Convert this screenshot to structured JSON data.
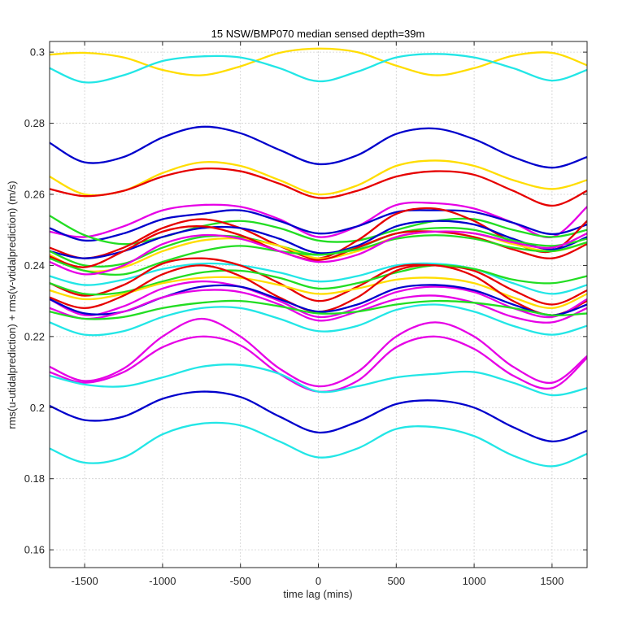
{
  "chart_data": {
    "type": "line",
    "title": "15 NSW/BMP070 median sensed depth=39m",
    "xlabel": "time lag (mins)",
    "ylabel": "rms(u-utidalprediction) + rms(v-vtidalprediction) (m/s)",
    "xlim": [
      -1725,
      1725
    ],
    "ylim": [
      0.155,
      0.303
    ],
    "xticks": [
      -1500,
      -1000,
      -500,
      0,
      500,
      1000,
      1500
    ],
    "xtick_labels": [
      "-1500",
      "-1000",
      "-500",
      "0",
      "500",
      "1000",
      "1500"
    ],
    "yticks": [
      0.16,
      0.18,
      0.2,
      0.22,
      0.24,
      0.26,
      0.28,
      0.3
    ],
    "ytick_labels": [
      "0.16",
      "0.18",
      "0.2",
      "0.22",
      "0.24",
      "0.26",
      "0.28",
      "0.3"
    ],
    "grid": true,
    "colors": {
      "blue": "#0000cc",
      "cyan": "#22e6e6",
      "yellow": "#ffdd00",
      "red": "#e60000",
      "green": "#22dd22",
      "magenta": "#e600e6"
    },
    "x": [
      -1725,
      -1500,
      -1250,
      -1000,
      -750,
      -500,
      -250,
      0,
      250,
      500,
      750,
      1000,
      1250,
      1500,
      1725
    ],
    "series": [
      {
        "name": "yellow-top",
        "color": "yellow",
        "values": [
          0.2993,
          0.2998,
          0.2985,
          0.295,
          0.2935,
          0.296,
          0.2998,
          0.301,
          0.3,
          0.2962,
          0.2935,
          0.2955,
          0.299,
          0.2998,
          0.2963
        ]
      },
      {
        "name": "cyan-top",
        "color": "cyan",
        "values": [
          0.2955,
          0.2915,
          0.2935,
          0.2975,
          0.2988,
          0.2985,
          0.2955,
          0.2918,
          0.2945,
          0.2985,
          0.2995,
          0.2985,
          0.2955,
          0.292,
          0.295
        ]
      },
      {
        "name": "blue-high",
        "color": "blue",
        "values": [
          0.2745,
          0.269,
          0.2705,
          0.276,
          0.279,
          0.2772,
          0.2725,
          0.2685,
          0.271,
          0.277,
          0.2785,
          0.2755,
          0.2705,
          0.2675,
          0.2705
        ]
      },
      {
        "name": "yellow-high",
        "color": "yellow",
        "values": [
          0.265,
          0.26,
          0.261,
          0.266,
          0.269,
          0.268,
          0.264,
          0.26,
          0.2625,
          0.268,
          0.2695,
          0.268,
          0.264,
          0.2615,
          0.264
        ]
      },
      {
        "name": "red-high",
        "color": "red",
        "values": [
          0.2615,
          0.2595,
          0.261,
          0.265,
          0.2672,
          0.2665,
          0.263,
          0.259,
          0.261,
          0.265,
          0.2665,
          0.2655,
          0.261,
          0.2568,
          0.261
        ]
      },
      {
        "name": "magenta-1",
        "color": "magenta",
        "values": [
          0.2495,
          0.248,
          0.251,
          0.2555,
          0.257,
          0.2565,
          0.253,
          0.248,
          0.251,
          0.257,
          0.2575,
          0.256,
          0.252,
          0.248,
          0.2565
        ]
      },
      {
        "name": "blue-2",
        "color": "blue",
        "values": [
          0.2505,
          0.247,
          0.249,
          0.253,
          0.2545,
          0.2555,
          0.2525,
          0.249,
          0.251,
          0.255,
          0.2555,
          0.255,
          0.252,
          0.2488,
          0.2515
        ]
      },
      {
        "name": "green-1",
        "color": "green",
        "values": [
          0.254,
          0.2485,
          0.246,
          0.248,
          0.251,
          0.2525,
          0.2505,
          0.247,
          0.247,
          0.25,
          0.2525,
          0.253,
          0.25,
          0.248,
          0.25
        ]
      },
      {
        "name": "red-2",
        "color": "red",
        "values": [
          0.245,
          0.242,
          0.245,
          0.2505,
          0.253,
          0.2505,
          0.2455,
          0.242,
          0.247,
          0.2545,
          0.256,
          0.2525,
          0.2465,
          0.244,
          0.2525
        ]
      },
      {
        "name": "blue-3",
        "color": "blue",
        "values": [
          0.244,
          0.242,
          0.244,
          0.248,
          0.2505,
          0.2505,
          0.2475,
          0.2435,
          0.2455,
          0.251,
          0.2525,
          0.2515,
          0.2475,
          0.2445,
          0.248
        ]
      },
      {
        "name": "green-2",
        "color": "green",
        "values": [
          0.244,
          0.24,
          0.2405,
          0.245,
          0.248,
          0.248,
          0.2455,
          0.243,
          0.245,
          0.249,
          0.2505,
          0.25,
          0.247,
          0.2455,
          0.2475
        ]
      },
      {
        "name": "yellow-2",
        "color": "yellow",
        "values": [
          0.243,
          0.2385,
          0.2395,
          0.244,
          0.247,
          0.2475,
          0.2455,
          0.242,
          0.244,
          0.248,
          0.2495,
          0.249,
          0.246,
          0.244,
          0.2465
        ]
      },
      {
        "name": "red-3",
        "color": "red",
        "values": [
          0.2425,
          0.2395,
          0.244,
          0.2495,
          0.251,
          0.2485,
          0.244,
          0.2415,
          0.245,
          0.249,
          0.2495,
          0.248,
          0.2445,
          0.242,
          0.246
        ]
      },
      {
        "name": "green-3",
        "color": "green",
        "values": [
          0.242,
          0.2385,
          0.2375,
          0.241,
          0.244,
          0.2455,
          0.244,
          0.243,
          0.2445,
          0.2475,
          0.2485,
          0.2475,
          0.245,
          0.244,
          0.2465
        ]
      },
      {
        "name": "magenta-2",
        "color": "magenta",
        "values": [
          0.241,
          0.2375,
          0.24,
          0.246,
          0.2485,
          0.2475,
          0.244,
          0.241,
          0.243,
          0.248,
          0.2495,
          0.249,
          0.2465,
          0.245,
          0.249
        ]
      },
      {
        "name": "cyan-2",
        "color": "cyan",
        "values": [
          0.237,
          0.2345,
          0.236,
          0.239,
          0.2405,
          0.24,
          0.238,
          0.2355,
          0.237,
          0.24,
          0.2405,
          0.239,
          0.235,
          0.232,
          0.2345
        ]
      },
      {
        "name": "red-4",
        "color": "red",
        "values": [
          0.235,
          0.2315,
          0.2345,
          0.2405,
          0.242,
          0.24,
          0.235,
          0.23,
          0.234,
          0.2395,
          0.24,
          0.2385,
          0.233,
          0.229,
          0.233
        ]
      },
      {
        "name": "green-4",
        "color": "green",
        "values": [
          0.235,
          0.232,
          0.2325,
          0.2355,
          0.238,
          0.2385,
          0.2365,
          0.2335,
          0.235,
          0.238,
          0.24,
          0.239,
          0.236,
          0.235,
          0.237
        ]
      },
      {
        "name": "yellow-3",
        "color": "yellow",
        "values": [
          0.233,
          0.2305,
          0.232,
          0.235,
          0.2365,
          0.2365,
          0.2345,
          0.232,
          0.2335,
          0.236,
          0.2365,
          0.235,
          0.231,
          0.228,
          0.232
        ]
      },
      {
        "name": "red-5",
        "color": "red",
        "values": [
          0.231,
          0.228,
          0.2315,
          0.2375,
          0.24,
          0.237,
          0.231,
          0.227,
          0.231,
          0.2385,
          0.24,
          0.237,
          0.23,
          0.226,
          0.23
        ]
      },
      {
        "name": "magenta-3",
        "color": "magenta",
        "values": [
          0.2305,
          0.226,
          0.2285,
          0.2335,
          0.2355,
          0.234,
          0.23,
          0.2255,
          0.228,
          0.2325,
          0.234,
          0.2325,
          0.228,
          0.2255,
          0.2305
        ]
      },
      {
        "name": "blue-4",
        "color": "blue",
        "values": [
          0.2305,
          0.2265,
          0.227,
          0.231,
          0.234,
          0.234,
          0.2305,
          0.227,
          0.229,
          0.2335,
          0.2345,
          0.233,
          0.229,
          0.226,
          0.229
        ]
      },
      {
        "name": "magenta-4",
        "color": "magenta",
        "values": [
          0.228,
          0.225,
          0.227,
          0.231,
          0.233,
          0.2325,
          0.229,
          0.2245,
          0.227,
          0.2305,
          0.2315,
          0.2295,
          0.2255,
          0.224,
          0.228
        ]
      },
      {
        "name": "green-5",
        "color": "green",
        "values": [
          0.227,
          0.225,
          0.2255,
          0.228,
          0.2295,
          0.23,
          0.2285,
          0.2265,
          0.227,
          0.229,
          0.23,
          0.2295,
          0.228,
          0.226,
          0.2265
        ]
      },
      {
        "name": "cyan-3",
        "color": "cyan",
        "values": [
          0.224,
          0.2205,
          0.2215,
          0.2255,
          0.228,
          0.228,
          0.225,
          0.2215,
          0.223,
          0.2275,
          0.229,
          0.227,
          0.223,
          0.2205,
          0.223
        ]
      },
      {
        "name": "magenta-5",
        "color": "magenta",
        "values": [
          0.2115,
          0.2075,
          0.211,
          0.22,
          0.225,
          0.22,
          0.211,
          0.206,
          0.21,
          0.22,
          0.224,
          0.22,
          0.2115,
          0.207,
          0.2145
        ]
      },
      {
        "name": "magenta-6",
        "color": "magenta",
        "values": [
          0.21,
          0.207,
          0.21,
          0.217,
          0.22,
          0.2175,
          0.2095,
          0.2045,
          0.2075,
          0.217,
          0.22,
          0.2165,
          0.209,
          0.2055,
          0.214
        ]
      },
      {
        "name": "cyan-4",
        "color": "cyan",
        "values": [
          0.209,
          0.2065,
          0.206,
          0.2085,
          0.2115,
          0.212,
          0.2095,
          0.2045,
          0.206,
          0.2085,
          0.2095,
          0.21,
          0.207,
          0.2035,
          0.2055
        ]
      },
      {
        "name": "blue-low",
        "color": "blue",
        "values": [
          0.2005,
          0.1965,
          0.1975,
          0.2025,
          0.2045,
          0.203,
          0.1975,
          0.193,
          0.196,
          0.201,
          0.202,
          0.2,
          0.1945,
          0.1905,
          0.1935
        ]
      },
      {
        "name": "cyan-low",
        "color": "cyan",
        "values": [
          0.1885,
          0.1845,
          0.186,
          0.1925,
          0.1955,
          0.195,
          0.1905,
          0.186,
          0.1885,
          0.194,
          0.1945,
          0.192,
          0.1865,
          0.1835,
          0.187
        ]
      }
    ]
  }
}
